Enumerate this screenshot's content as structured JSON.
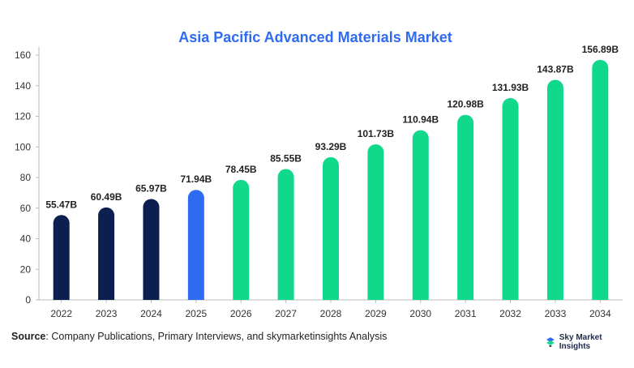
{
  "chart_data": {
    "type": "bar",
    "title": "Asia Pacific Advanced Materials Market",
    "xlabel": "",
    "ylabel": "",
    "categories": [
      "2022",
      "2023",
      "2024",
      "2025",
      "2026",
      "2027",
      "2028",
      "2029",
      "2030",
      "2031",
      "2032",
      "2033",
      "2034"
    ],
    "values": [
      55.47,
      60.49,
      65.97,
      71.94,
      78.45,
      85.55,
      93.29,
      101.73,
      110.94,
      120.98,
      131.93,
      143.87,
      156.89
    ],
    "data_labels": [
      "55.47B",
      "60.49B",
      "65.97B",
      "71.94B",
      "78.45B",
      "85.55B",
      "93.29B",
      "101.73B",
      "110.94B",
      "120.98B",
      "131.93B",
      "143.87B",
      "156.89B"
    ],
    "ylim": [
      0,
      160
    ],
    "yticks": [
      0,
      20,
      40,
      60,
      80,
      100,
      120,
      140,
      160
    ],
    "grid": false,
    "colors": {
      "historical": "#0d1f4f",
      "current": "#2e6bf0",
      "forecast": "#10d98c",
      "title": "#2e6bf0"
    },
    "bar_color_groups": [
      "historical",
      "historical",
      "historical",
      "current",
      "forecast",
      "forecast",
      "forecast",
      "forecast",
      "forecast",
      "forecast",
      "forecast",
      "forecast",
      "forecast"
    ]
  },
  "footer": {
    "source_label": "Source",
    "source_text": ": Company Publications, Primary Interviews, and skymarketinsights Analysis"
  },
  "brand": {
    "name": "Sky Market Insights",
    "icon": "sky-market-insights-logo-icon"
  }
}
